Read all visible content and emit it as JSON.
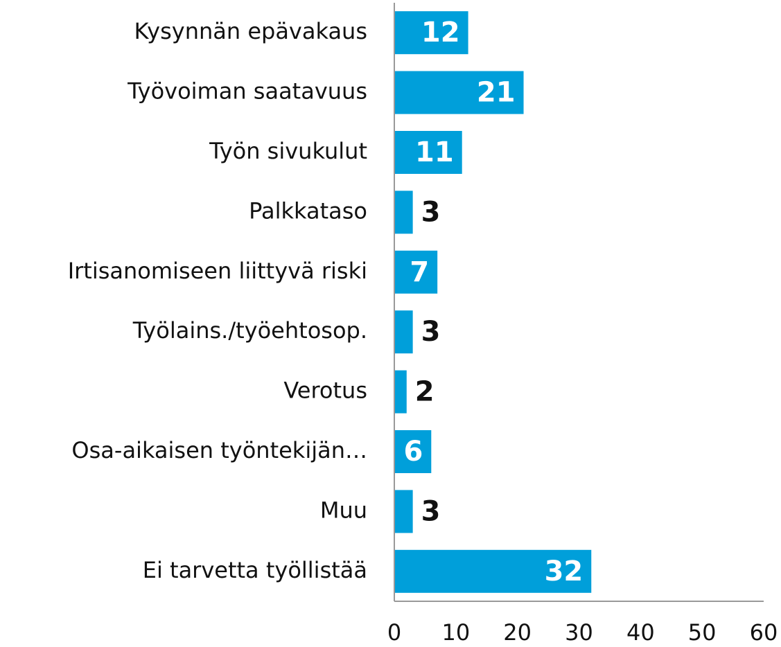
{
  "chart_data": {
    "type": "bar",
    "orientation": "horizontal",
    "categories": [
      "Kysynnän epävakaus",
      "Työvoiman saatavuus",
      "Työn sivukulut",
      "Palkkataso",
      "Irtisanomiseen liittyvä riski",
      "Työlains./työehtosop.",
      "Verotus",
      "Osa-aikaisen työntekijän…",
      "Muu",
      "Ei tarvetta työllistää"
    ],
    "values": [
      12,
      21,
      11,
      3,
      7,
      3,
      2,
      6,
      3,
      32
    ],
    "color": "#009fda",
    "xlim": [
      0,
      60
    ],
    "xticks": [
      0,
      10,
      20,
      30,
      40,
      50,
      60
    ],
    "grid": false
  }
}
